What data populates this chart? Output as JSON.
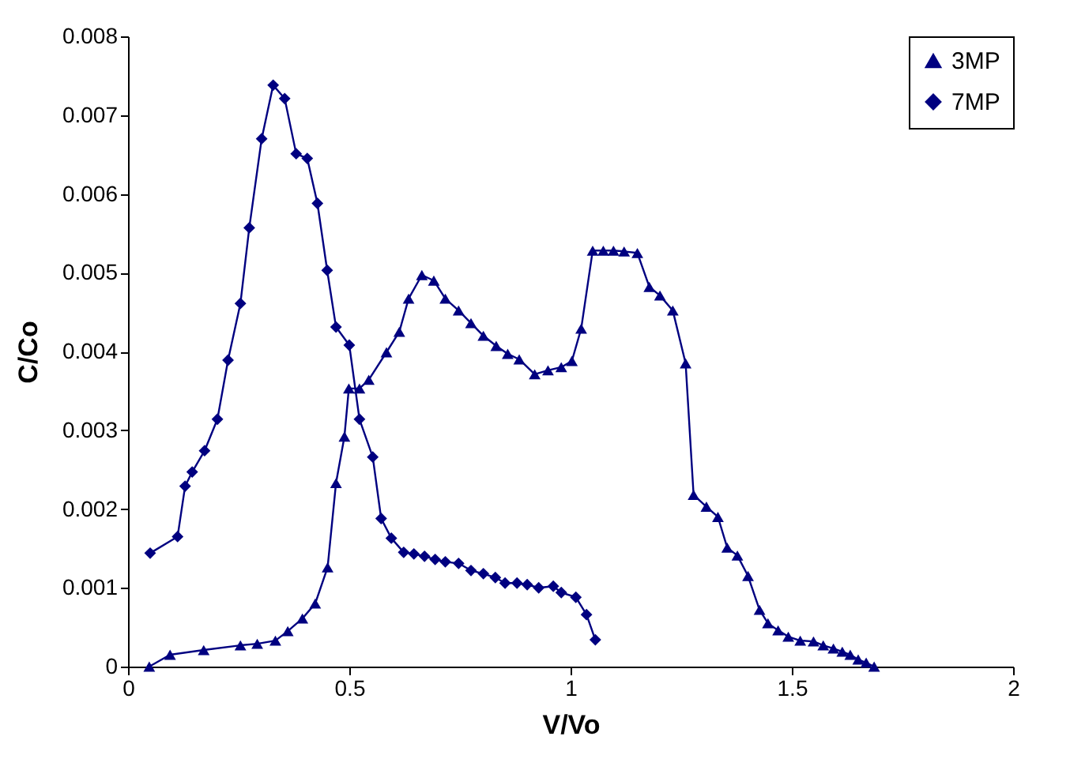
{
  "chart_data": {
    "type": "line",
    "xlabel": "V/Vo",
    "ylabel": "C/Co",
    "xlim": [
      0,
      2
    ],
    "xticks": [
      0,
      0.5,
      1,
      1.5,
      2
    ],
    "ylim": [
      0,
      0.008
    ],
    "yticks": [
      0,
      0.001,
      0.002,
      0.003,
      0.004,
      0.005,
      0.006,
      0.007,
      0.008
    ],
    "grid": false,
    "legend": "top right",
    "series": [
      {
        "name": "3MP",
        "color": "#000080",
        "marker": "triangle",
        "x": [
          0.048,
          0.095,
          0.171,
          0.254,
          0.292,
          0.333,
          0.361,
          0.394,
          0.423,
          0.451,
          0.47,
          0.489,
          0.499,
          0.523,
          0.544,
          0.584,
          0.613,
          0.634,
          0.664,
          0.691,
          0.717,
          0.747,
          0.775,
          0.803,
          0.832,
          0.858,
          0.884,
          0.919,
          0.949,
          0.979,
          1.003,
          1.024,
          1.05,
          1.074,
          1.097,
          1.121,
          1.151,
          1.178,
          1.202,
          1.231,
          1.26,
          1.278,
          1.307,
          1.333,
          1.354,
          1.377,
          1.401,
          1.427,
          1.446,
          1.469,
          1.492,
          1.519,
          1.549,
          1.571,
          1.594,
          1.614,
          1.632,
          1.65,
          1.668,
          1.686
        ],
        "values": [
          0.0,
          0.00015,
          0.00021,
          0.00027,
          0.00029,
          0.00033,
          0.00045,
          0.00061,
          0.0008,
          0.00126,
          0.00233,
          0.00292,
          0.00353,
          0.00353,
          0.00364,
          0.00399,
          0.00425,
          0.00467,
          0.00497,
          0.0049,
          0.00467,
          0.00452,
          0.00436,
          0.0042,
          0.00407,
          0.00397,
          0.0039,
          0.00371,
          0.00376,
          0.0038,
          0.00388,
          0.00429,
          0.00528,
          0.00528,
          0.00528,
          0.00527,
          0.00525,
          0.00482,
          0.00471,
          0.00452,
          0.00385,
          0.00218,
          0.00203,
          0.0019,
          0.00151,
          0.00141,
          0.00115,
          0.00072,
          0.00055,
          0.00046,
          0.00038,
          0.00033,
          0.00032,
          0.00027,
          0.00023,
          0.00019,
          0.00015,
          9e-05,
          5e-05,
          0.0
        ]
      },
      {
        "name": "7MP",
        "color": "#000080",
        "marker": "diamond",
        "x": [
          0.05,
          0.112,
          0.129,
          0.145,
          0.173,
          0.202,
          0.226,
          0.254,
          0.274,
          0.302,
          0.328,
          0.354,
          0.38,
          0.405,
          0.428,
          0.45,
          0.47,
          0.5,
          0.523,
          0.553,
          0.572,
          0.595,
          0.623,
          0.646,
          0.67,
          0.694,
          0.717,
          0.747,
          0.775,
          0.803,
          0.83,
          0.852,
          0.879,
          0.902,
          0.928,
          0.961,
          0.979,
          1.012,
          1.036,
          1.056
        ],
        "values": [
          0.00144,
          0.00165,
          0.00229,
          0.00247,
          0.00274,
          0.00314,
          0.00389,
          0.00461,
          0.00557,
          0.0067,
          0.00738,
          0.00721,
          0.00651,
          0.00645,
          0.00588,
          0.00503,
          0.00431,
          0.00408,
          0.00314,
          0.00266,
          0.00188,
          0.00163,
          0.00145,
          0.00143,
          0.0014,
          0.00136,
          0.00133,
          0.00131,
          0.00122,
          0.00118,
          0.00113,
          0.00106,
          0.00106,
          0.00104,
          0.001,
          0.00102,
          0.00094,
          0.00088,
          0.00066,
          0.00034
        ]
      }
    ]
  }
}
